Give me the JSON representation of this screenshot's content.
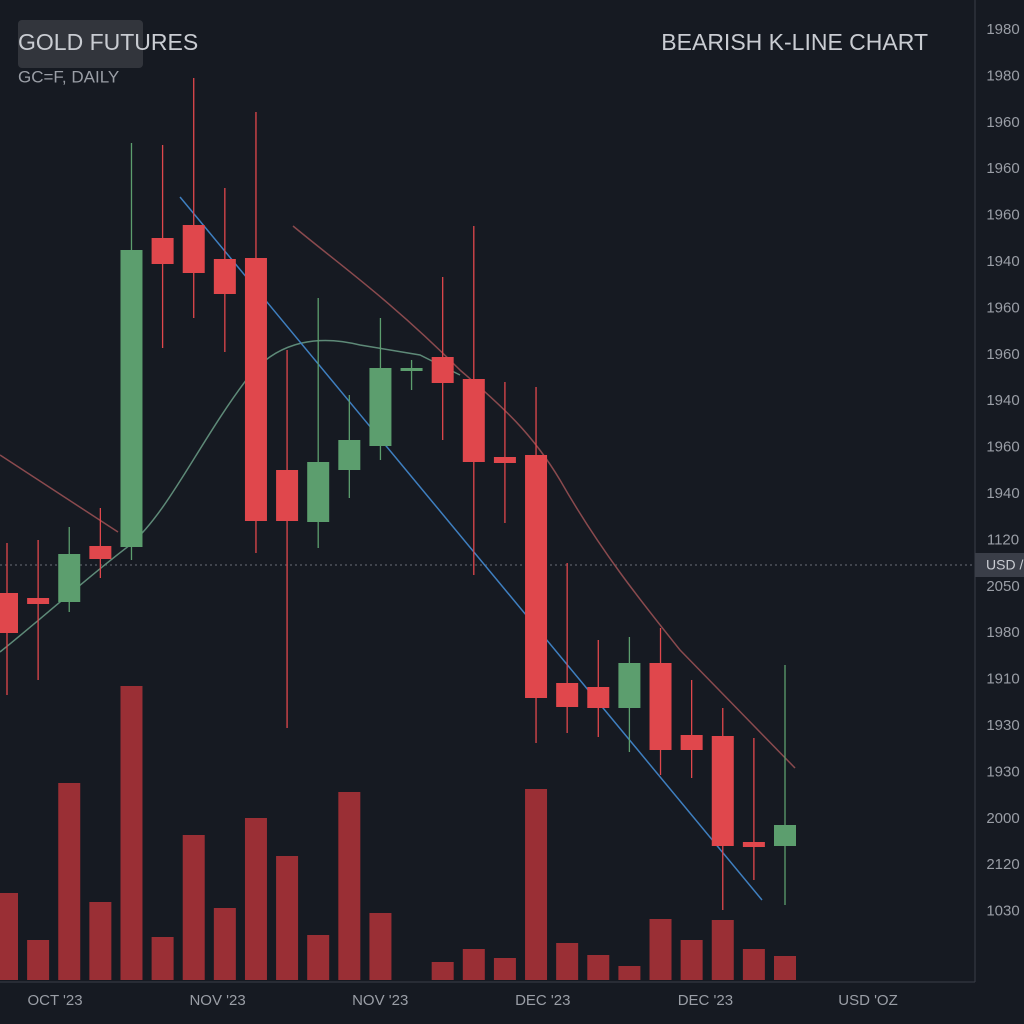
{
  "chart_data": {
    "type": "candlestick",
    "title": "GOLD FUTURES",
    "subtitle": "GC=F, DAILY",
    "heading": "BEARISH K-LINE CHART",
    "price_tag": "USD /",
    "axis_labels": [
      "1980",
      "1980",
      "1960",
      "1960",
      "1960",
      "1940",
      "1960",
      "1960",
      "1940",
      "1960",
      "1940",
      "1120",
      "2050",
      "1980",
      "1910",
      "1930",
      "1930",
      "2000",
      "2120",
      "1030"
    ],
    "x_labels": [
      "OCT '23",
      "NOV '23",
      "NOV '23",
      "DEC '23",
      "DEC '23",
      "USD 'OZ"
    ],
    "ylim": [
      1800,
      2000
    ],
    "volume_lim": [
      0,
      300
    ],
    "up_color": "#5c9e6e",
    "down_color": "#e0474c",
    "volume_color": "#9a2f35",
    "open": [
      1881.4,
      1880.4,
      1879.6,
      1890.8,
      1890.6,
      1952.4,
      1955,
      1948.2,
      1948.4,
      1906,
      1895.6,
      1906,
      1910.8,
      1925.8,
      1928.6,
      1924.2,
      1908.6,
      1909,
      1863.4,
      1862.6,
      1858.4,
      1867.4,
      1853,
      1852.8,
      1831.6,
      1830.8
    ],
    "high": [
      1891.4,
      1892,
      1894.6,
      1898.4,
      1971.4,
      1971,
      1984.4,
      1962.4,
      1977.6,
      1930,
      1940.4,
      1921,
      1936.4,
      1928,
      1944.6,
      1954.8,
      1923.6,
      1922.6,
      1887.4,
      1872,
      1872.6,
      1874.4,
      1864,
      1858.4,
      1852.4,
      1867
    ],
    "low": [
      1861,
      1864,
      1877.6,
      1884.4,
      1888,
      1930.4,
      1936.4,
      1929.6,
      1889.4,
      1854.4,
      1890.4,
      1900.4,
      1908,
      1922,
      1912,
      1885,
      1895.4,
      1851.4,
      1853.4,
      1852.6,
      1849.6,
      1845,
      1844.4,
      1818,
      1824,
      1819
    ],
    "close": [
      1873.4,
      1879.2,
      1889.2,
      1888.2,
      1950,
      1947.2,
      1945.4,
      1941.2,
      1895.8,
      1895.8,
      1907.6,
      1912,
      1926.4,
      1926.4,
      1923.4,
      1907.6,
      1907.4,
      1860.4,
      1858.6,
      1858.4,
      1867.4,
      1850,
      1850,
      1830.8,
      1830.6,
      1835
    ],
    "volume": [
      87,
      40,
      197,
      78,
      294,
      43,
      145,
      72,
      162,
      124,
      45,
      188,
      67,
      null,
      18,
      31,
      22,
      191,
      37,
      25,
      14,
      61,
      40,
      60,
      31,
      24
    ]
  }
}
